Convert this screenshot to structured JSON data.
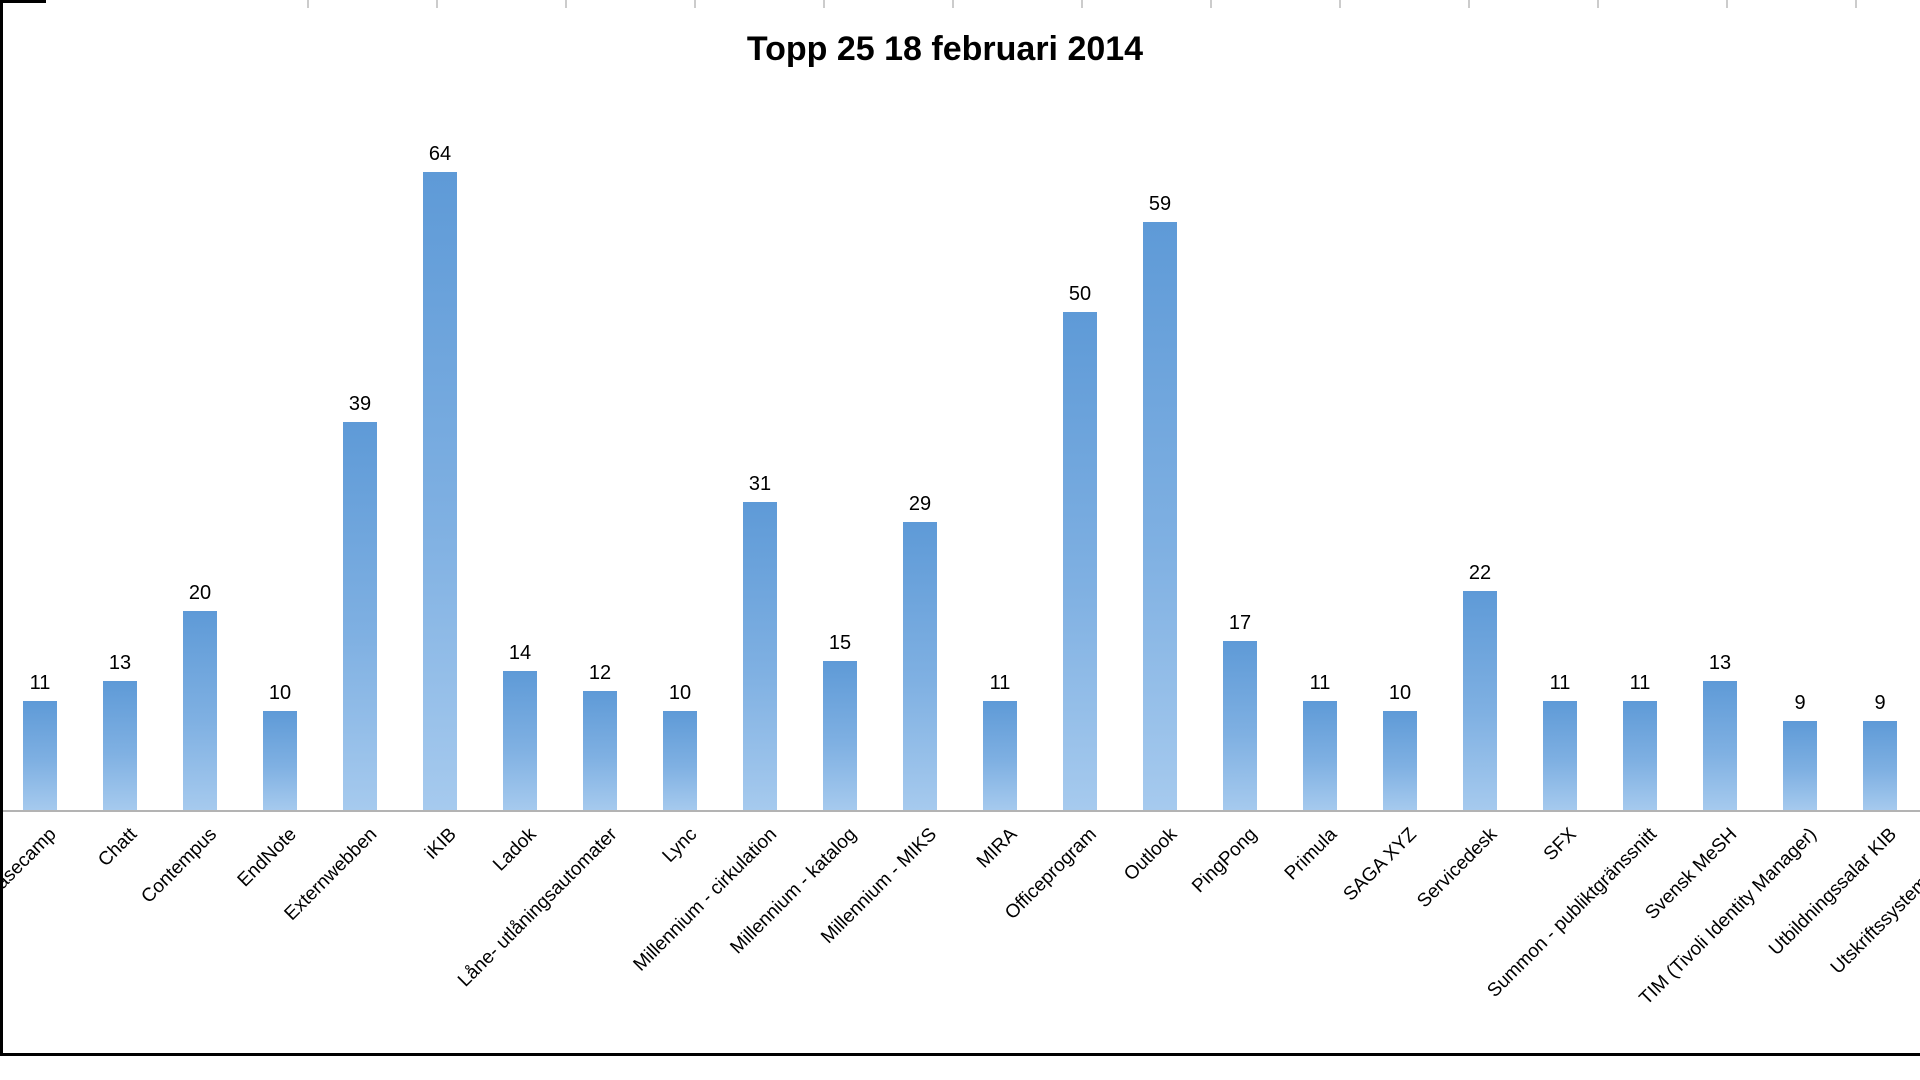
{
  "chart_data": {
    "type": "bar",
    "title": "Topp 25 18 februari 2014",
    "categories": [
      "Basecamp",
      "Chatt",
      "Contempus",
      "EndNote",
      "Externwebben",
      "iKIB",
      "Ladok",
      "Låne- utlåningsautomater",
      "Lync",
      "Millennium - cirkulation",
      "Millennium - katalog",
      "Millennium - MIKS",
      "MIRA",
      "Officeprogram",
      "Outlook",
      "PingPong",
      "Primula",
      "SAGA XYZ",
      "Servicedesk",
      "SFX",
      "Summon - publiktgränssnitt",
      "Svensk MeSH",
      "TIM (Tivoli Identity Manager)",
      "Utbildningssalar KIB",
      "Utskriftssystem- Cirrato"
    ],
    "values": [
      11,
      13,
      20,
      10,
      39,
      64,
      14,
      12,
      10,
      31,
      15,
      29,
      11,
      50,
      59,
      17,
      11,
      10,
      22,
      11,
      11,
      13,
      9,
      9,
      null
    ],
    "value_labels_shown": true,
    "xlabel": "",
    "ylabel": "",
    "y_axis_visible": false,
    "grid": false,
    "legend": null,
    "x_axis_line_color": "#b3b3b3",
    "bar_color_top": "#5e9ad7",
    "bar_color_bottom": "#a6caee"
  }
}
